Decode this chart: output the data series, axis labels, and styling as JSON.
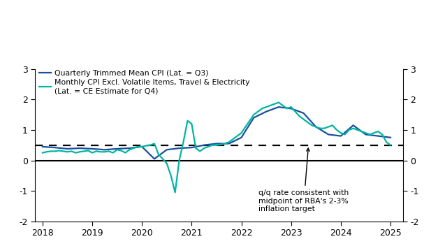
{
  "blue_line_label": "Quarterly Trimmed Mean CPI (Lat. = Q3)",
  "teal_line_label": "Monthly CPI Excl. Volatile Items, Travel & Electricity\n(Lat. = CE Estimate for Q4)",
  "annotation_text": "q/q rate consistent with\nmidpoint of RBA's 2-3%\ninflation target",
  "dashed_line_y": 0.5,
  "ylim": [
    -2,
    3
  ],
  "xlim": [
    2017.85,
    2025.25
  ],
  "yticks": [
    -2,
    -1,
    0,
    1,
    2,
    3
  ],
  "xticks": [
    2018,
    2019,
    2020,
    2021,
    2022,
    2023,
    2024,
    2025
  ],
  "blue_color": "#1a4f9c",
  "teal_color": "#00b5a3",
  "background_color": "#ffffff",
  "blue_x": [
    2018.0,
    2018.25,
    2018.5,
    2018.75,
    2019.0,
    2019.25,
    2019.5,
    2019.75,
    2020.0,
    2020.25,
    2020.5,
    2020.75,
    2021.0,
    2021.25,
    2021.5,
    2021.75,
    2022.0,
    2022.25,
    2022.5,
    2022.75,
    2023.0,
    2023.25,
    2023.5,
    2023.75,
    2024.0,
    2024.25,
    2024.5,
    2024.75,
    2025.0
  ],
  "blue_y": [
    0.45,
    0.42,
    0.38,
    0.4,
    0.38,
    0.35,
    0.38,
    0.4,
    0.45,
    0.05,
    0.35,
    0.4,
    0.42,
    0.5,
    0.55,
    0.55,
    0.75,
    1.4,
    1.6,
    1.75,
    1.7,
    1.55,
    1.1,
    0.85,
    0.8,
    1.15,
    0.85,
    0.8,
    0.75
  ],
  "teal_x": [
    2018.0,
    2018.083,
    2018.167,
    2018.25,
    2018.333,
    2018.417,
    2018.5,
    2018.583,
    2018.667,
    2018.75,
    2018.833,
    2018.917,
    2019.0,
    2019.083,
    2019.167,
    2019.25,
    2019.333,
    2019.417,
    2019.5,
    2019.583,
    2019.667,
    2019.75,
    2019.833,
    2019.917,
    2020.0,
    2020.083,
    2020.167,
    2020.25,
    2020.333,
    2020.417,
    2020.5,
    2020.583,
    2020.667,
    2020.75,
    2020.833,
    2020.917,
    2021.0,
    2021.083,
    2021.167,
    2021.25,
    2021.333,
    2021.417,
    2021.5,
    2021.583,
    2021.667,
    2021.75,
    2021.833,
    2021.917,
    2022.0,
    2022.083,
    2022.167,
    2022.25,
    2022.333,
    2022.417,
    2022.5,
    2022.583,
    2022.667,
    2022.75,
    2022.833,
    2022.917,
    2023.0,
    2023.083,
    2023.167,
    2023.25,
    2023.333,
    2023.417,
    2023.5,
    2023.583,
    2023.667,
    2023.75,
    2023.833,
    2023.917,
    2024.0,
    2024.083,
    2024.167,
    2024.25,
    2024.333,
    2024.417,
    2024.5,
    2024.583,
    2024.667,
    2024.75,
    2024.833,
    2024.917,
    2025.0
  ],
  "teal_y": [
    0.25,
    0.28,
    0.3,
    0.3,
    0.32,
    0.3,
    0.28,
    0.3,
    0.25,
    0.28,
    0.3,
    0.32,
    0.25,
    0.3,
    0.28,
    0.28,
    0.3,
    0.25,
    0.35,
    0.32,
    0.25,
    0.35,
    0.4,
    0.45,
    0.45,
    0.48,
    0.5,
    0.55,
    0.2,
    0.05,
    -0.1,
    -0.5,
    -1.05,
    0.0,
    0.6,
    1.3,
    1.2,
    0.4,
    0.3,
    0.4,
    0.45,
    0.5,
    0.5,
    0.52,
    0.55,
    0.6,
    0.7,
    0.8,
    0.9,
    1.1,
    1.3,
    1.5,
    1.6,
    1.7,
    1.75,
    1.8,
    1.85,
    1.9,
    1.8,
    1.7,
    1.75,
    1.6,
    1.45,
    1.35,
    1.25,
    1.15,
    1.1,
    1.05,
    1.05,
    1.1,
    1.15,
    1.0,
    0.9,
    0.85,
    1.0,
    1.05,
    1.0,
    0.95,
    0.9,
    0.85,
    0.9,
    0.95,
    0.85,
    0.6,
    0.5
  ]
}
